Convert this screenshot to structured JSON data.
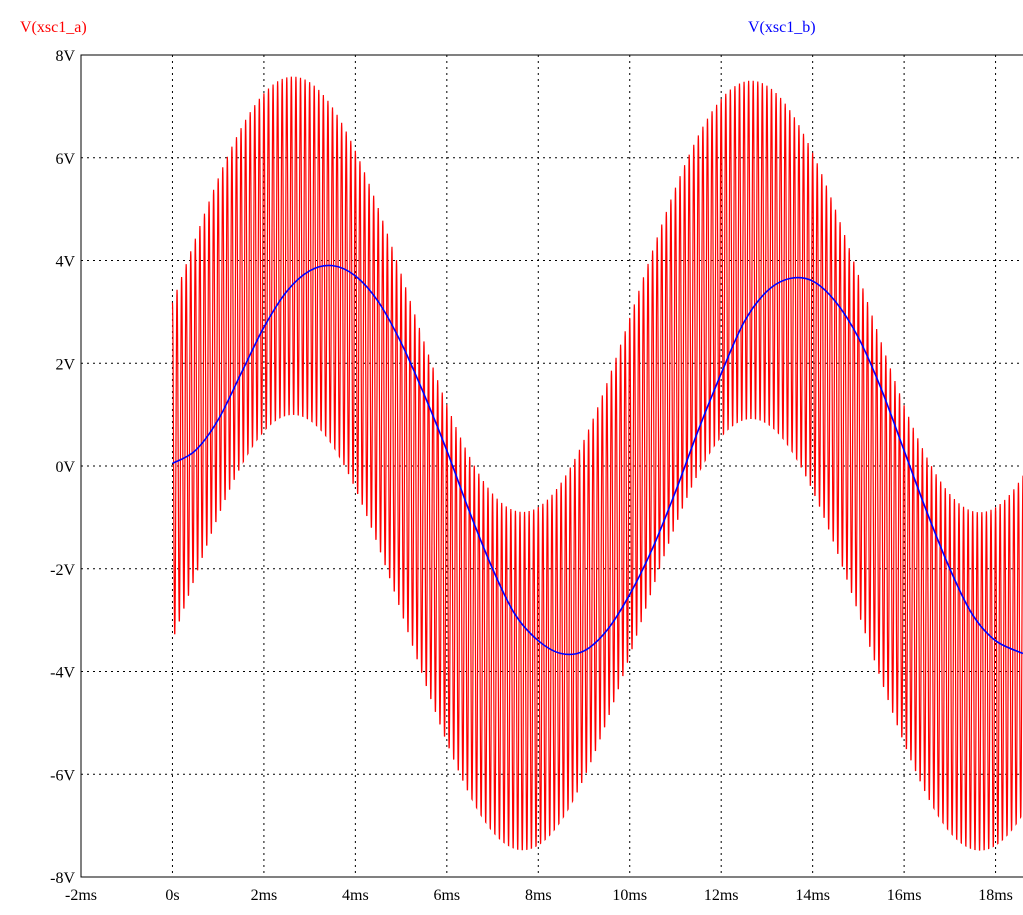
{
  "chart_data": {
    "type": "line",
    "title": "",
    "xlabel": "",
    "ylabel": "",
    "xlim": [
      -2,
      18.6
    ],
    "ylim": [
      -8,
      8
    ],
    "x_unit": "ms",
    "y_unit": "V",
    "x_ticks": [
      "-2ms",
      "0s",
      "2ms",
      "4ms",
      "6ms",
      "8ms",
      "10ms",
      "12ms",
      "14ms",
      "16ms",
      "18ms"
    ],
    "y_ticks": [
      "8V",
      "6V",
      "4V",
      "2V",
      "0V",
      "-2V",
      "-4V",
      "-6V",
      "-8V"
    ],
    "grid": true,
    "legend_position": "top",
    "series": [
      {
        "name": "V(xsc1_a)",
        "color": "#ff0000",
        "description_values": {
          "envelope_top_peaks": [
            [
              2.7,
              7.8
            ],
            [
              12.8,
              7.6
            ]
          ],
          "envelope_bottom_troughs": [
            [
              7.9,
              -7.6
            ],
            [
              17.9,
              -7.6
            ]
          ],
          "oscillation_amplitude": 3.3
        }
      },
      {
        "name": "V(xsc1_b)",
        "color": "#0000ff",
        "points": [
          [
            0.0,
            0.05
          ],
          [
            0.5,
            0.3
          ],
          [
            1.0,
            0.9
          ],
          [
            1.5,
            1.8
          ],
          [
            2.0,
            2.7
          ],
          [
            2.5,
            3.4
          ],
          [
            3.0,
            3.8
          ],
          [
            3.5,
            3.9
          ],
          [
            4.0,
            3.7
          ],
          [
            4.5,
            3.2
          ],
          [
            5.0,
            2.4
          ],
          [
            5.5,
            1.4
          ],
          [
            6.0,
            0.3
          ],
          [
            6.5,
            -0.9
          ],
          [
            7.0,
            -2.0
          ],
          [
            7.5,
            -2.9
          ],
          [
            8.0,
            -3.4
          ],
          [
            8.5,
            -3.65
          ],
          [
            9.0,
            -3.6
          ],
          [
            9.5,
            -3.2
          ],
          [
            10.0,
            -2.5
          ],
          [
            10.5,
            -1.6
          ],
          [
            11.0,
            -0.5
          ],
          [
            11.5,
            0.7
          ],
          [
            12.0,
            1.8
          ],
          [
            12.5,
            2.8
          ],
          [
            13.0,
            3.4
          ],
          [
            13.5,
            3.65
          ],
          [
            14.0,
            3.6
          ],
          [
            14.5,
            3.2
          ],
          [
            15.0,
            2.5
          ],
          [
            15.5,
            1.5
          ],
          [
            16.0,
            0.3
          ],
          [
            16.5,
            -0.9
          ],
          [
            17.0,
            -2.0
          ],
          [
            17.5,
            -2.9
          ],
          [
            18.0,
            -3.4
          ],
          [
            18.6,
            -3.65
          ]
        ]
      }
    ]
  }
}
